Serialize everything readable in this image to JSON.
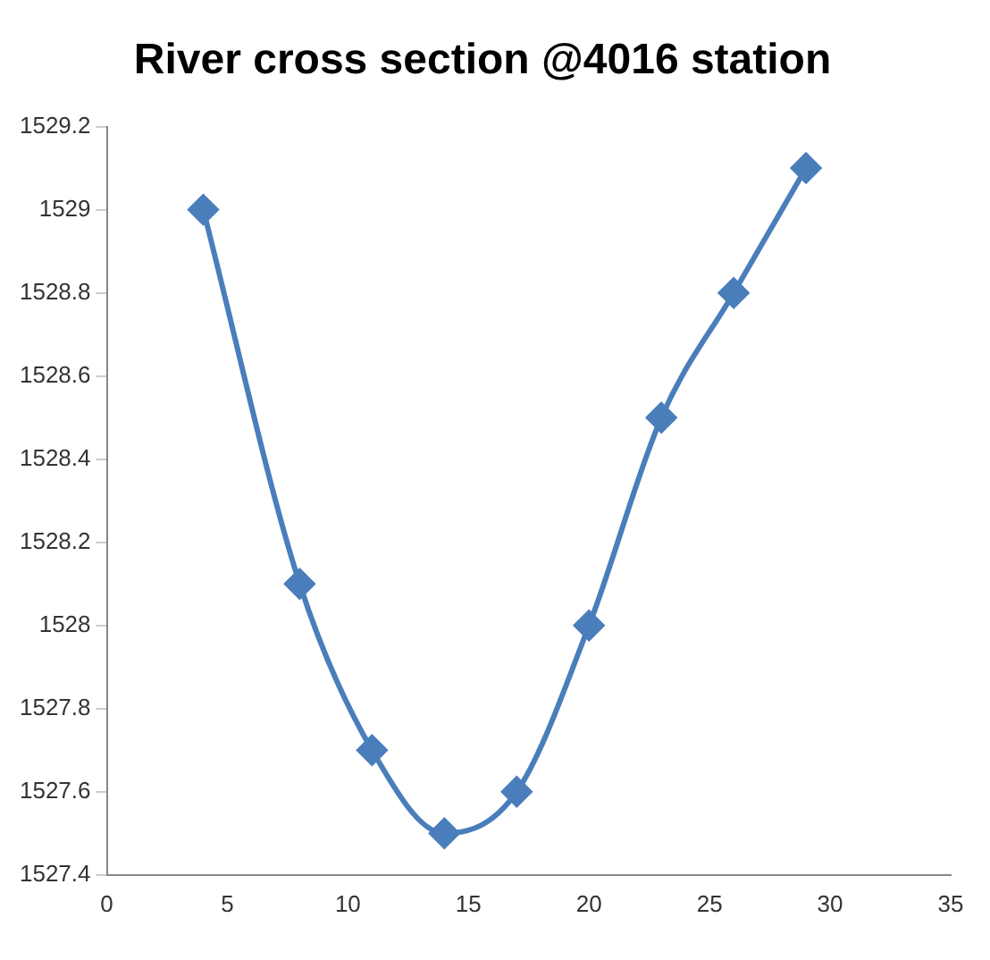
{
  "chart_data": {
    "type": "line",
    "title": "River cross section @4016 station",
    "x": [
      4,
      8,
      11,
      14,
      17,
      20,
      23,
      26,
      29
    ],
    "series": [
      {
        "color": "#4a7ebb",
        "values": [
          1529,
          1528.1,
          1527.7,
          1527.5,
          1527.6,
          1528,
          1528.5,
          1528.8,
          1529.1
        ]
      }
    ],
    "xlim": [
      0,
      35
    ],
    "xticks": [
      0,
      5,
      10,
      15,
      20,
      25,
      30,
      35
    ],
    "ylim": [
      1527.4,
      1529.2
    ],
    "yticks": [
      1527.4,
      1527.6,
      1527.8,
      1528,
      1528.2,
      1528.4,
      1528.6,
      1528.8,
      1529,
      1529.2
    ],
    "grid": false,
    "legend": false,
    "marker": "diamond",
    "line_style": "solid"
  }
}
